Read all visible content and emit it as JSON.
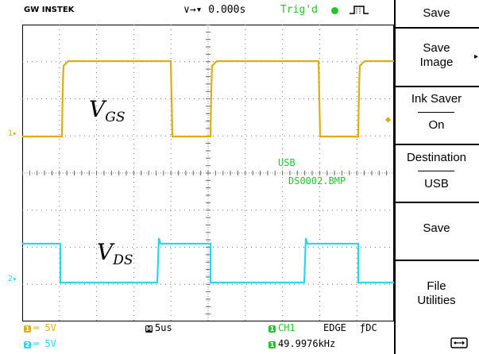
{
  "header": {
    "brand": "GW INSTEK",
    "timebase": "∨→▾ 0.000s",
    "trig_status": "Trig'd"
  },
  "waveform": {
    "label_vgs_base": "V",
    "label_vgs_sub": "GS",
    "label_vds_base": "V",
    "label_vds_sub": "DS",
    "ch1_marker": "1",
    "ch2_marker": "2",
    "usb_text": "USB",
    "file_name": "DS0002.BMP",
    "colors": {
      "ch1": "#dcae16",
      "ch2": "#2bd6ec",
      "status": "#22c42c"
    }
  },
  "menu": {
    "title": "Save",
    "save_image_line1": "Save",
    "save_image_line2": "Image",
    "ink_saver_label": "Ink Saver",
    "ink_saver_value": "On",
    "destination_label": "Destination",
    "destination_value": "USB",
    "save": "Save",
    "file_utilities_line1": "File",
    "file_utilities_line2": "Utilities"
  },
  "status_bar": {
    "ch1_scale": "═ 5V",
    "ch2_scale": "═ 5V",
    "ch1_badge": "1",
    "ch2_badge": "2",
    "timebase_badge": "M",
    "timebase_value": "5us",
    "trig_source": "CH1",
    "trig_type": "EDGE",
    "trig_slope": "ƒ",
    "trig_coupling": "DC",
    "frequency": "49.9976kHz"
  }
}
